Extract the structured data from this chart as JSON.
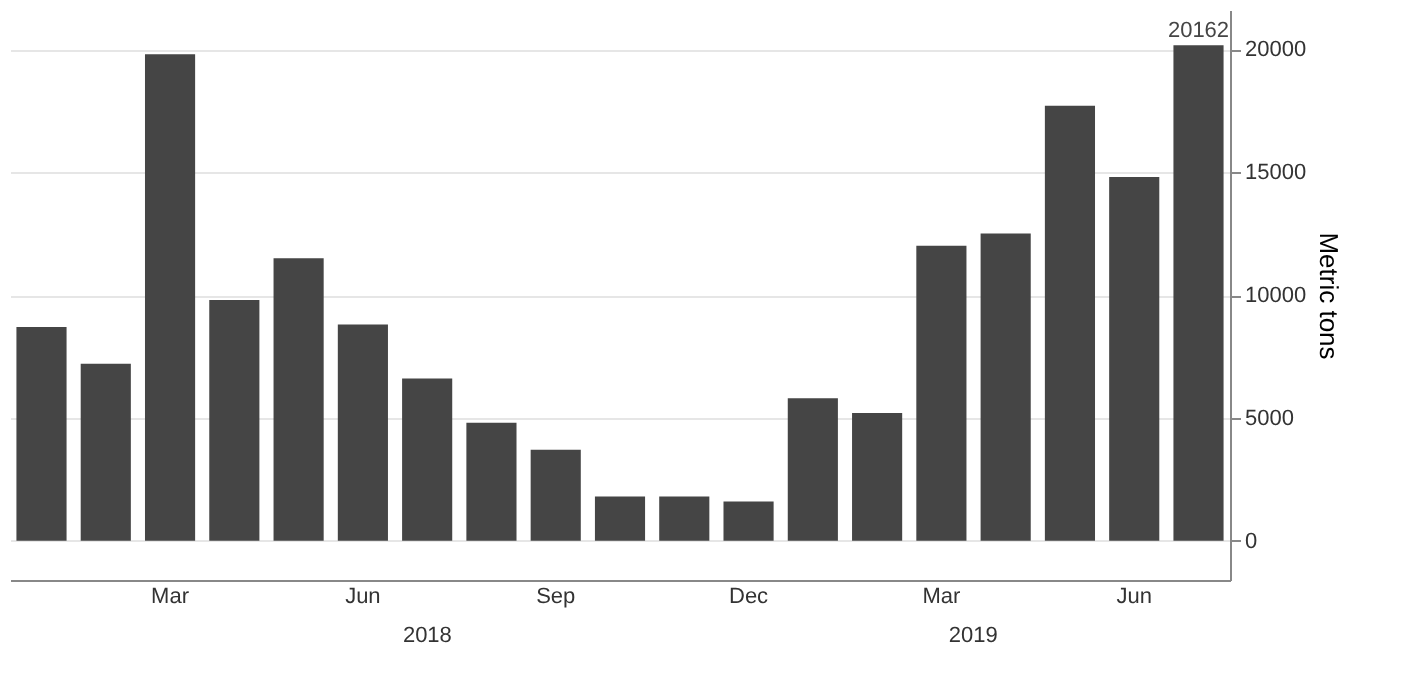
{
  "chart_data": {
    "type": "bar",
    "ylabel": "Metric tons",
    "categories": [
      null,
      null,
      "Mar",
      null,
      null,
      "Jun",
      null,
      null,
      "Sep",
      null,
      null,
      "Dec",
      null,
      null,
      "Mar",
      null,
      null,
      "Jun",
      null
    ],
    "values": [
      8700,
      7200,
      19800,
      9800,
      11500,
      8800,
      6600,
      4800,
      3700,
      1800,
      1800,
      1600,
      5800,
      5200,
      12000,
      12500,
      17700,
      14800,
      20162
    ],
    "value_labels": [
      null,
      null,
      null,
      null,
      null,
      null,
      null,
      null,
      null,
      null,
      null,
      null,
      null,
      null,
      null,
      null,
      null,
      null,
      "20162"
    ],
    "color": "#454545",
    "ylim": [
      -1600,
      21600
    ],
    "yticks": [
      0,
      5000,
      10000,
      15000,
      20000
    ],
    "grid": "y",
    "annotations": [
      "2018",
      "2019"
    ]
  }
}
